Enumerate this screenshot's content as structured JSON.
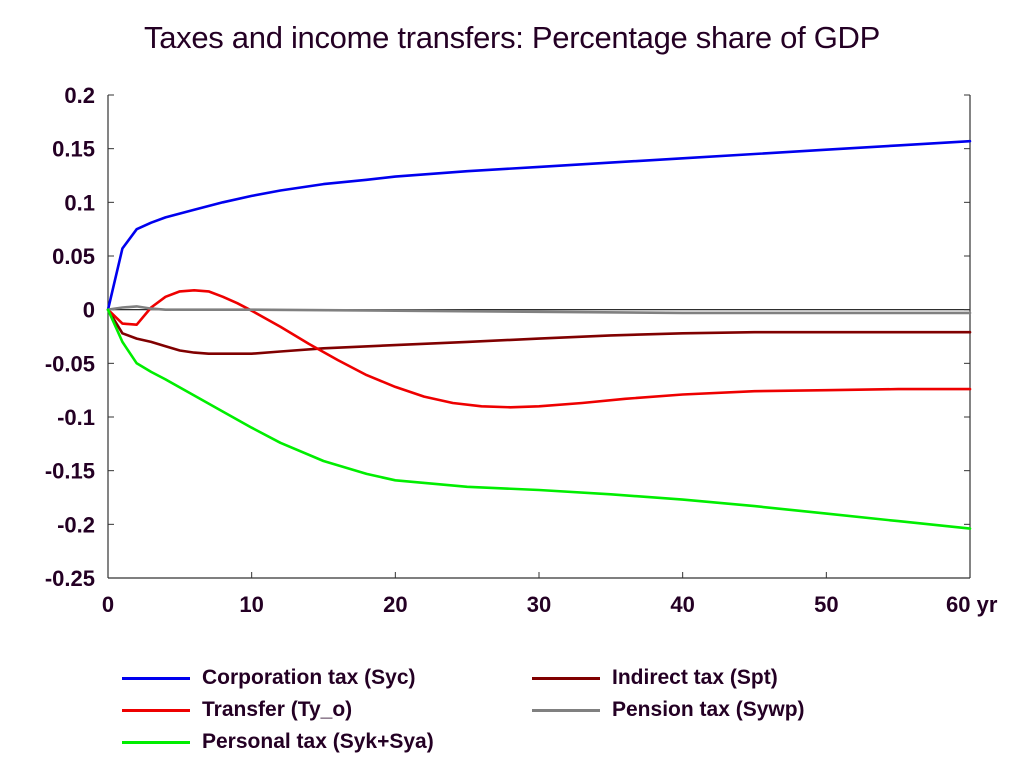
{
  "chart_data": {
    "type": "line",
    "title": "Taxes and income transfers: Percentage share of GDP",
    "xlabel": "",
    "ylabel": "",
    "x_unit_label": "yr",
    "xlim": [
      0,
      60
    ],
    "ylim": [
      -0.25,
      0.2
    ],
    "x_ticks": [
      0,
      10,
      20,
      30,
      40,
      50,
      60
    ],
    "x_tick_labels": [
      "0",
      "10",
      "20",
      "30",
      "40",
      "50",
      "60 yr"
    ],
    "y_ticks": [
      0.2,
      0.15,
      0.1,
      0.05,
      0,
      -0.05,
      -0.1,
      -0.15,
      -0.2,
      -0.25
    ],
    "y_tick_labels": [
      "0.2",
      "0.15",
      "0.1",
      "0.05",
      "0",
      "-0.05",
      "-0.1",
      "-0.15",
      "-0.2",
      "-0.25"
    ],
    "grid": false,
    "zero_line": true,
    "legend_position": "bottom",
    "series": [
      {
        "name": "Corporation tax (Syc)",
        "color": "#0000ee",
        "x": [
          0,
          1,
          2,
          3,
          4,
          6,
          8,
          10,
          12,
          15,
          18,
          20,
          25,
          30,
          35,
          40,
          45,
          50,
          55,
          60
        ],
        "y": [
          0,
          0.057,
          0.075,
          0.081,
          0.086,
          0.093,
          0.1,
          0.106,
          0.111,
          0.117,
          0.121,
          0.124,
          0.129,
          0.133,
          0.137,
          0.141,
          0.145,
          0.149,
          0.153,
          0.157
        ]
      },
      {
        "name": "Indirect tax (Spt)",
        "color": "#800000",
        "x": [
          0,
          1,
          2,
          3,
          4,
          5,
          6,
          7,
          8,
          10,
          12,
          15,
          20,
          25,
          30,
          35,
          40,
          45,
          50,
          55,
          60
        ],
        "y": [
          0,
          -0.022,
          -0.027,
          -0.03,
          -0.034,
          -0.038,
          -0.04,
          -0.041,
          -0.041,
          -0.041,
          -0.039,
          -0.036,
          -0.033,
          -0.03,
          -0.027,
          -0.024,
          -0.022,
          -0.021,
          -0.021,
          -0.021,
          -0.021
        ]
      },
      {
        "name": "Transfer (Ty_o)",
        "color": "#ee0000",
        "x": [
          0,
          1,
          2,
          3,
          4,
          5,
          6,
          7,
          8,
          9,
          10,
          12,
          14,
          16,
          18,
          20,
          22,
          24,
          26,
          28,
          30,
          33,
          36,
          40,
          45,
          50,
          55,
          60
        ],
        "y": [
          0,
          -0.013,
          -0.014,
          0.002,
          0.012,
          0.017,
          0.018,
          0.017,
          0.012,
          0.006,
          -0.001,
          -0.016,
          -0.032,
          -0.047,
          -0.061,
          -0.072,
          -0.081,
          -0.087,
          -0.09,
          -0.091,
          -0.09,
          -0.087,
          -0.083,
          -0.079,
          -0.076,
          -0.075,
          -0.074,
          -0.074
        ]
      },
      {
        "name": "Pension tax (Sywp)",
        "color": "#808080",
        "x": [
          0,
          1,
          2,
          3,
          4,
          10,
          20,
          30,
          40,
          50,
          60
        ],
        "y": [
          0,
          0.002,
          0.003,
          0.001,
          0,
          0,
          -0.001,
          -0.002,
          -0.003,
          -0.003,
          -0.003
        ]
      },
      {
        "name": "Personal tax (Syk+Sya)",
        "color": "#00ee00",
        "x": [
          0,
          1,
          2,
          3,
          4,
          6,
          8,
          10,
          12,
          15,
          18,
          20,
          25,
          30,
          35,
          40,
          45,
          50,
          55,
          60
        ],
        "y": [
          0,
          -0.03,
          -0.05,
          -0.058,
          -0.065,
          -0.08,
          -0.095,
          -0.11,
          -0.124,
          -0.141,
          -0.153,
          -0.159,
          -0.165,
          -0.168,
          -0.172,
          -0.177,
          -0.183,
          -0.19,
          -0.197,
          -0.204
        ]
      }
    ]
  },
  "legend": {
    "items": [
      {
        "label": "Corporation tax (Syc)",
        "color": "#0000ee"
      },
      {
        "label": "Indirect tax (Spt)",
        "color": "#800000"
      },
      {
        "label": "Transfer (Ty_o)",
        "color": "#ee0000"
      },
      {
        "label": "Pension tax (Sywp)",
        "color": "#808080"
      },
      {
        "label": "Personal tax (Syk+Sya)",
        "color": "#00ee00"
      }
    ]
  }
}
